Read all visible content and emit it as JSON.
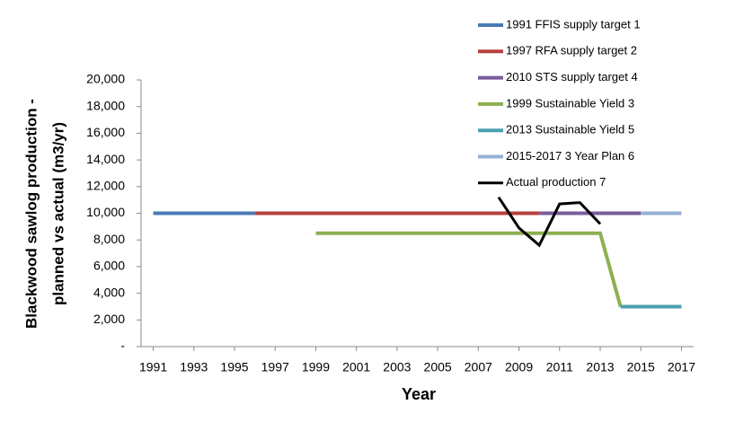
{
  "chart_data": {
    "type": "line",
    "xlabel": "Year",
    "ylabel": [
      "Blackwood sawlog production -",
      "planned vs actual (m3/yr)"
    ],
    "xlim": [
      1990.4,
      2017.6
    ],
    "xticks": [
      1991,
      1993,
      1995,
      1997,
      1999,
      2001,
      2003,
      2005,
      2007,
      2009,
      2011,
      2013,
      2015,
      2017
    ],
    "ylim": [
      0,
      20000
    ],
    "yticks": [
      {
        "value": 0,
        "label": "-"
      },
      {
        "value": 2000,
        "label": "2,000"
      },
      {
        "value": 4000,
        "label": "4,000"
      },
      {
        "value": 6000,
        "label": "6,000"
      },
      {
        "value": 8000,
        "label": "8,000"
      },
      {
        "value": 10000,
        "label": "10,000"
      },
      {
        "value": 12000,
        "label": "12,000"
      },
      {
        "value": 14000,
        "label": "14,000"
      },
      {
        "value": 16000,
        "label": "16,000"
      },
      {
        "value": 18000,
        "label": "18,000"
      },
      {
        "value": 20000,
        "label": "20,000"
      }
    ],
    "grid": false,
    "legend": "top-right",
    "series": [
      {
        "name": "1991 FFIS supply target 1",
        "color": "#4a7ab5",
        "width": 4,
        "x": [
          1991,
          1996
        ],
        "values": [
          10000,
          10000
        ]
      },
      {
        "name": "1997 RFA supply target 2",
        "color": "#b5413e",
        "width": 4,
        "x": [
          1996,
          2010
        ],
        "values": [
          10000,
          10000
        ]
      },
      {
        "name": "2010 STS supply target 4",
        "color": "#7a5c9a",
        "width": 4,
        "x": [
          2010,
          2015
        ],
        "values": [
          10000,
          10000
        ]
      },
      {
        "name": "1999 Sustainable Yield 3",
        "color": "#8db050",
        "width": 4,
        "x": [
          1999,
          2013,
          2014
        ],
        "values": [
          8500,
          8500,
          3000
        ]
      },
      {
        "name": "2013 Sustainable Yield 5",
        "color": "#4aa0b0",
        "width": 4,
        "x": [
          2014,
          2017
        ],
        "values": [
          3000,
          3000
        ]
      },
      {
        "name": "2015-2017 3 Year Plan 6",
        "color": "#94b0d6",
        "width": 4,
        "x": [
          2015,
          2017
        ],
        "values": [
          10000,
          10000
        ]
      },
      {
        "name": "Actual production 7",
        "color": "#000000",
        "width": 3,
        "x": [
          2008,
          2009,
          2010,
          2011,
          2012,
          2013
        ],
        "values": [
          11200,
          8900,
          7600,
          10700,
          10800,
          9200
        ]
      }
    ]
  }
}
